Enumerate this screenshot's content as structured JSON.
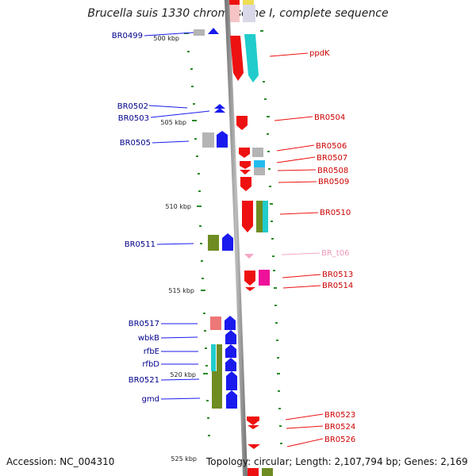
{
  "title": "Brucella suis 1330 chromosome I, complete sequence",
  "footer": {
    "accession": "Accession: NC_004310",
    "topology": "Topology: circular; Length: 2,107,794 bp; Genes: 2,169"
  },
  "colors": {
    "left_label": "#00008b",
    "right_label": "#cc0000",
    "rna_label": "#ee99bb",
    "axis": "#8c8c8c",
    "tick": "#2a8a2a",
    "red": "#ee1111",
    "blue": "#1a1aee",
    "cyan": "#22cccc",
    "olive": "#6e8c22",
    "gray": "#b4b4b4",
    "salmon": "#ee7777",
    "magenta": "#ee1199",
    "pink": "#f4a6c8",
    "skyblue": "#22bbee"
  },
  "kbp_ticks": [
    {
      "label": "500 kbp"
    },
    {
      "label": "505 kbp"
    },
    {
      "label": "510 kbp"
    },
    {
      "label": "515 kbp"
    },
    {
      "label": "520 kbp"
    },
    {
      "label": "525 kbp"
    }
  ],
  "left_labels": [
    {
      "text": "BR0499"
    },
    {
      "text": "BR0502"
    },
    {
      "text": "BR0503"
    },
    {
      "text": "BR0505"
    },
    {
      "text": "BR0511"
    },
    {
      "text": "BR0517"
    },
    {
      "text": "wbkB"
    },
    {
      "text": "rfbE"
    },
    {
      "text": "rfbD"
    },
    {
      "text": "BR0521"
    },
    {
      "text": "gmd"
    }
  ],
  "right_labels": [
    {
      "text": "ppdK"
    },
    {
      "text": "BR0504"
    },
    {
      "text": "BR0506"
    },
    {
      "text": "BR0507"
    },
    {
      "text": "BR0508"
    },
    {
      "text": "BR0509"
    },
    {
      "text": "BR0510"
    },
    {
      "text": "BR_t06"
    },
    {
      "text": "BR0513"
    },
    {
      "text": "BR0514"
    },
    {
      "text": "BR0523"
    },
    {
      "text": "BR0524"
    },
    {
      "text": "BR0526"
    }
  ]
}
